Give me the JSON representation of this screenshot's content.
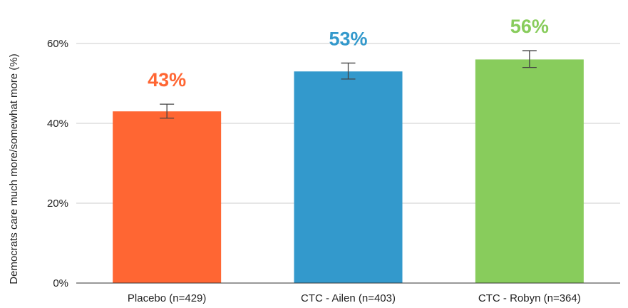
{
  "chart_data": {
    "type": "bar",
    "categories": [
      "Placebo (n=429)",
      "CTC - Ailen (n=403)",
      "CTC - Robyn (n=364)"
    ],
    "values": [
      43,
      53,
      56
    ],
    "error_bars": [
      {
        "low": 41.3,
        "high": 44.8
      },
      {
        "low": 51.1,
        "high": 55.1
      },
      {
        "low": 54.0,
        "high": 58.2
      }
    ],
    "data_labels": [
      "43%",
      "53%",
      "56%"
    ],
    "colors": [
      "#ff6633",
      "#3399cc",
      "#88cc5c"
    ],
    "ylabel": "Democrats care much more/somewhat more (%)",
    "ylim": [
      0,
      60
    ],
    "yticks": [
      0,
      20,
      40,
      60
    ],
    "ytick_labels": [
      "0%",
      "20%",
      "40%",
      "60%"
    ],
    "grid": true,
    "legend": "none"
  }
}
